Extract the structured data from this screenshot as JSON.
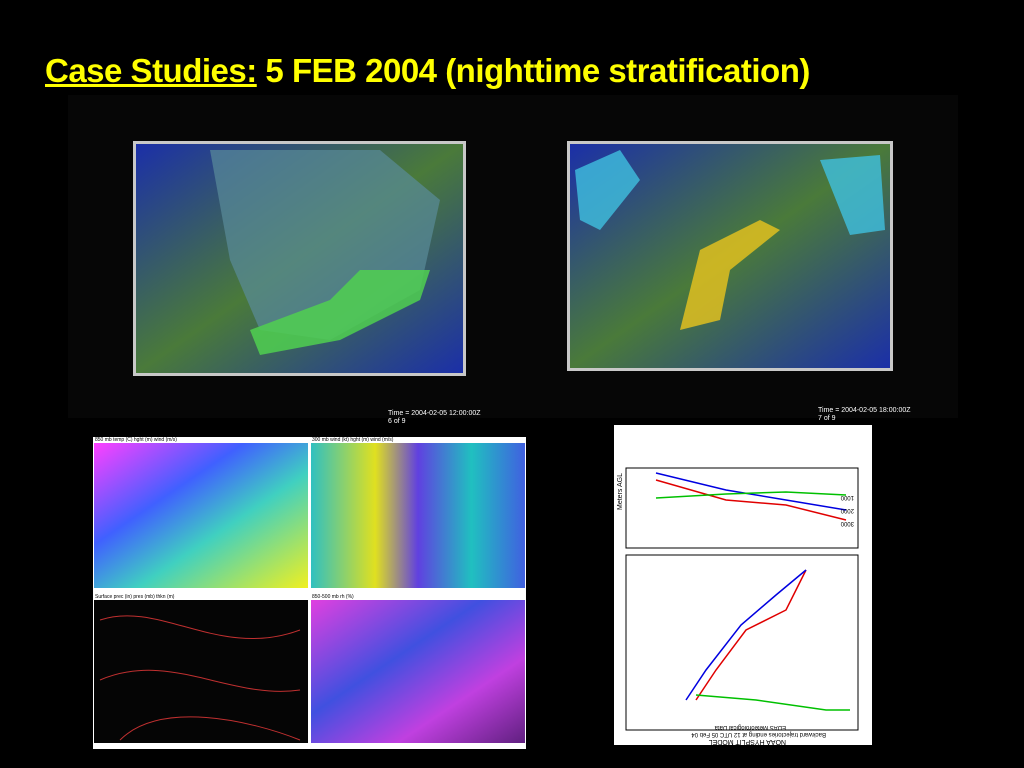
{
  "title": {
    "lead": "Case Studies:",
    "rest": "5 FEB 2004 (nighttime stratification)"
  },
  "top_panels": [
    {
      "time": "Time = 2004-02-05 12:00:00Z",
      "frame": "6 of 9"
    },
    {
      "time": "Time = 2004-02-05 18:00:00Z",
      "frame": "7 of 9"
    }
  ],
  "map_panels": [
    {
      "header": "850 mb temp (C) hght (m) wind (m/s)"
    },
    {
      "header": "300 mb wind (kt) hght (m) wind (m/s)"
    },
    {
      "header": "Surface prec (in) pres (mb) thkn (m)"
    },
    {
      "header": "850-500 mb rh (%)"
    }
  ],
  "trajectory": {
    "model": "NOAA HYSPLIT MODEL",
    "subtitle": "Backward trajectories ending at 12 UTC 05 Feb 04",
    "data": "EDAS Meteorological Data",
    "axis_label": "Meters AGL",
    "heights": [
      "3000",
      "2000",
      "1000"
    ]
  }
}
